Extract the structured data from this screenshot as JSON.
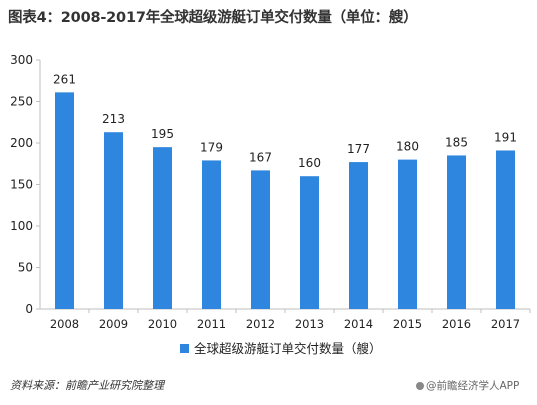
{
  "title": "图表4：2008-2017年全球超级游艇订单交付数量（单位：艘）",
  "source": "资料来源：前瞻产业研究院整理",
  "footer": "@前瞻经济学人APP",
  "colors": {
    "bar": "#2e86de",
    "axis": "#bfbfbf",
    "text": "#222222"
  },
  "chart_data": {
    "type": "bar",
    "categories": [
      "2008",
      "2009",
      "2010",
      "2011",
      "2012",
      "2013",
      "2014",
      "2015",
      "2016",
      "2017"
    ],
    "series": [
      {
        "name": "全球超级游艇订单交付数量（艘）",
        "values": [
          261,
          213,
          195,
          179,
          167,
          160,
          177,
          180,
          185,
          191
        ]
      }
    ],
    "yticks": [
      "0",
      "50",
      "100",
      "150",
      "200",
      "250",
      "300"
    ],
    "ylim": [
      0,
      300
    ],
    "legend": "bottom",
    "grid": false,
    "data_labels": true
  }
}
